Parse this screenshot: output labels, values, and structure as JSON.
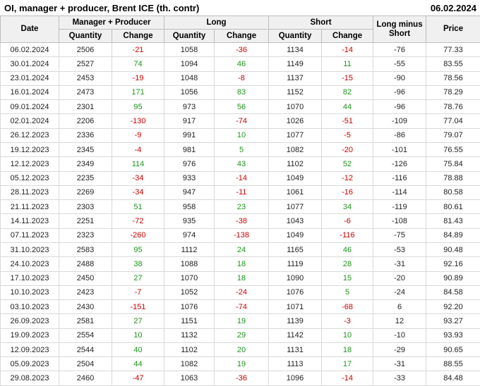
{
  "title_bar": {
    "title": "OI, manager + producer, Brent ICE (th. contr)",
    "report_date": "06.02.2024"
  },
  "colors": {
    "negative_change": "#cc0000",
    "positive_change": "#1d951d",
    "header_background": "#f0f0f0"
  },
  "table": {
    "headers": {
      "date": "Date",
      "manager_producer": "Manager + Producer",
      "long": "Long",
      "short": "Short",
      "long_minus_short": "Long minus Short",
      "price": "Price",
      "quantity": "Quantity",
      "change": "Change"
    }
  },
  "chart_data": {
    "type": "table",
    "title": "OI, manager + producer, Brent ICE (th. contr)",
    "as_of_date": "06.02.2024",
    "column_groups": [
      "Manager + Producer",
      "Long",
      "Short"
    ],
    "columns": [
      "Date",
      "Manager + Producer Quantity",
      "Manager + Producer Change",
      "Long Quantity",
      "Long Change",
      "Short Quantity",
      "Short Change",
      "Long minus Short",
      "Price"
    ],
    "rows": [
      [
        "06.02.2024",
        "2506",
        "-21",
        "1058",
        "-36",
        "1134",
        "-14",
        "-76",
        "77.33"
      ],
      [
        "30.01.2024",
        "2527",
        "74",
        "1094",
        "46",
        "1149",
        "11",
        "-55",
        "83.55"
      ],
      [
        "23.01.2024",
        "2453",
        "-19",
        "1048",
        "-8",
        "1137",
        "-15",
        "-90",
        "78.56"
      ],
      [
        "16.01.2024",
        "2473",
        "171",
        "1056",
        "83",
        "1152",
        "82",
        "-96",
        "78.29"
      ],
      [
        "09.01.2024",
        "2301",
        "95",
        "973",
        "56",
        "1070",
        "44",
        "-96",
        "78.76"
      ],
      [
        "02.01.2024",
        "2206",
        "-130",
        "917",
        "-74",
        "1026",
        "-51",
        "-109",
        "77.04"
      ],
      [
        "26.12.2023",
        "2336",
        "-9",
        "991",
        "10",
        "1077",
        "-5",
        "-86",
        "79.07"
      ],
      [
        "19.12.2023",
        "2345",
        "-4",
        "981",
        "5",
        "1082",
        "-20",
        "-101",
        "76.55"
      ],
      [
        "12.12.2023",
        "2349",
        "114",
        "976",
        "43",
        "1102",
        "52",
        "-126",
        "75.84"
      ],
      [
        "05.12.2023",
        "2235",
        "-34",
        "933",
        "-14",
        "1049",
        "-12",
        "-116",
        "78.88"
      ],
      [
        "28.11.2023",
        "2269",
        "-34",
        "947",
        "-11",
        "1061",
        "-16",
        "-114",
        "80.58"
      ],
      [
        "21.11.2023",
        "2303",
        "51",
        "958",
        "23",
        "1077",
        "34",
        "-119",
        "80.61"
      ],
      [
        "14.11.2023",
        "2251",
        "-72",
        "935",
        "-38",
        "1043",
        "-6",
        "-108",
        "81.43"
      ],
      [
        "07.11.2023",
        "2323",
        "-260",
        "974",
        "-138",
        "1049",
        "-116",
        "-75",
        "84.89"
      ],
      [
        "31.10.2023",
        "2583",
        "95",
        "1112",
        "24",
        "1165",
        "46",
        "-53",
        "90.48"
      ],
      [
        "24.10.2023",
        "2488",
        "38",
        "1088",
        "18",
        "1119",
        "28",
        "-31",
        "92.16"
      ],
      [
        "17.10.2023",
        "2450",
        "27",
        "1070",
        "18",
        "1090",
        "15",
        "-20",
        "90.89"
      ],
      [
        "10.10.2023",
        "2423",
        "-7",
        "1052",
        "-24",
        "1076",
        "5",
        "-24",
        "84.58"
      ],
      [
        "03.10.2023",
        "2430",
        "-151",
        "1076",
        "-74",
        "1071",
        "-68",
        "6",
        "92.20"
      ],
      [
        "26.09.2023",
        "2581",
        "27",
        "1151",
        "19",
        "1139",
        "-3",
        "12",
        "93.27"
      ],
      [
        "19.09.2023",
        "2554",
        "10",
        "1132",
        "29",
        "1142",
        "10",
        "-10",
        "93.93"
      ],
      [
        "12.09.2023",
        "2544",
        "40",
        "1102",
        "20",
        "1131",
        "18",
        "-29",
        "90.65"
      ],
      [
        "05.09.2023",
        "2504",
        "44",
        "1082",
        "19",
        "1113",
        "17",
        "-31",
        "88.55"
      ],
      [
        "29.08.2023",
        "2460",
        "-47",
        "1063",
        "-36",
        "1096",
        "-14",
        "-33",
        "84.48"
      ]
    ]
  }
}
